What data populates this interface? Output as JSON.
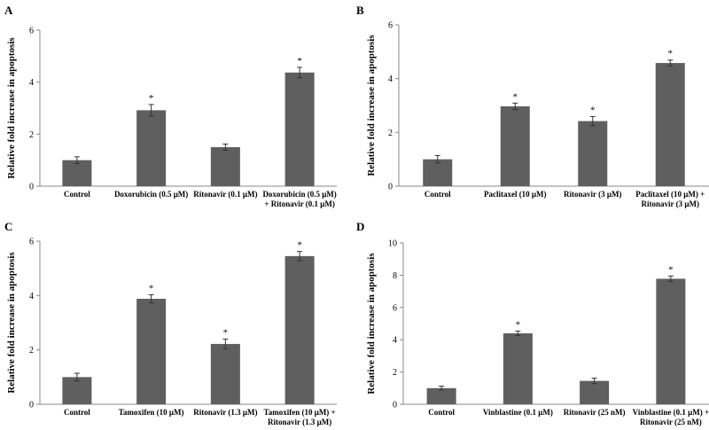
{
  "chart_data": [
    {
      "panel": "A",
      "type": "bar",
      "ylabel": "Relative fold increase  in apoptosis",
      "ylim": [
        0,
        6
      ],
      "yticks": [
        0,
        2,
        4,
        6
      ],
      "categories": [
        [
          "Control"
        ],
        [
          "Doxorubicin (0.5 μM)"
        ],
        [
          "Ritonavir (0.1 μM)"
        ],
        [
          "Doxorubicin (0.5 μM)",
          "+ Ritonavir (0.1 μM)"
        ]
      ],
      "values": [
        1.0,
        2.92,
        1.5,
        4.37
      ],
      "errors": [
        0.13,
        0.22,
        0.12,
        0.2
      ],
      "significant": [
        "",
        "*",
        "",
        "*"
      ],
      "bar_color": "#5f5f5f"
    },
    {
      "panel": "B",
      "type": "bar",
      "ylabel": "Relative fold increase  in apoptosis",
      "ylim": [
        0,
        6
      ],
      "yticks": [
        0,
        2,
        4,
        6
      ],
      "categories": [
        [
          "Control"
        ],
        [
          "Paclitaxel (10 μM)"
        ],
        [
          "Ritonavir (3 μM)"
        ],
        [
          "Paclitaxel (10 μM) +",
          "Ritonavir (3 μM)"
        ]
      ],
      "values": [
        1.0,
        2.97,
        2.42,
        4.58
      ],
      "errors": [
        0.14,
        0.12,
        0.17,
        0.11
      ],
      "significant": [
        "",
        "*",
        "*",
        "*"
      ],
      "bar_color": "#5f5f5f"
    },
    {
      "panel": "C",
      "type": "bar",
      "ylabel": "Relative fold increase  in apoptosis",
      "ylim": [
        0,
        6
      ],
      "yticks": [
        0,
        2,
        4,
        6
      ],
      "categories": [
        [
          "Control"
        ],
        [
          "Tamoxifen (10 μM)"
        ],
        [
          "Ritonavir (1.3 μM)"
        ],
        [
          "Tamoxifen (10 μM) +",
          "Ritonavir (1.3 μM)"
        ]
      ],
      "values": [
        1.0,
        3.88,
        2.22,
        5.45
      ],
      "errors": [
        0.14,
        0.15,
        0.18,
        0.17
      ],
      "significant": [
        "",
        "*",
        "*",
        "*"
      ],
      "bar_color": "#5f5f5f"
    },
    {
      "panel": "D",
      "type": "bar",
      "ylabel": "Relative fold increase  in apoptosis",
      "ylim": [
        0,
        10
      ],
      "yticks": [
        0,
        2,
        4,
        6,
        8,
        10
      ],
      "categories": [
        [
          "Control"
        ],
        [
          "Vinblastine (0.1 μM)"
        ],
        [
          "Ritonavir (25 nM)"
        ],
        [
          "Vinblastine (0.1 μM) +",
          "Ritonavir (25 nM)"
        ]
      ],
      "values": [
        1.0,
        4.4,
        1.45,
        7.78
      ],
      "errors": [
        0.12,
        0.14,
        0.17,
        0.17
      ],
      "significant": [
        "",
        "*",
        "",
        "*"
      ],
      "bar_color": "#5f5f5f"
    }
  ]
}
